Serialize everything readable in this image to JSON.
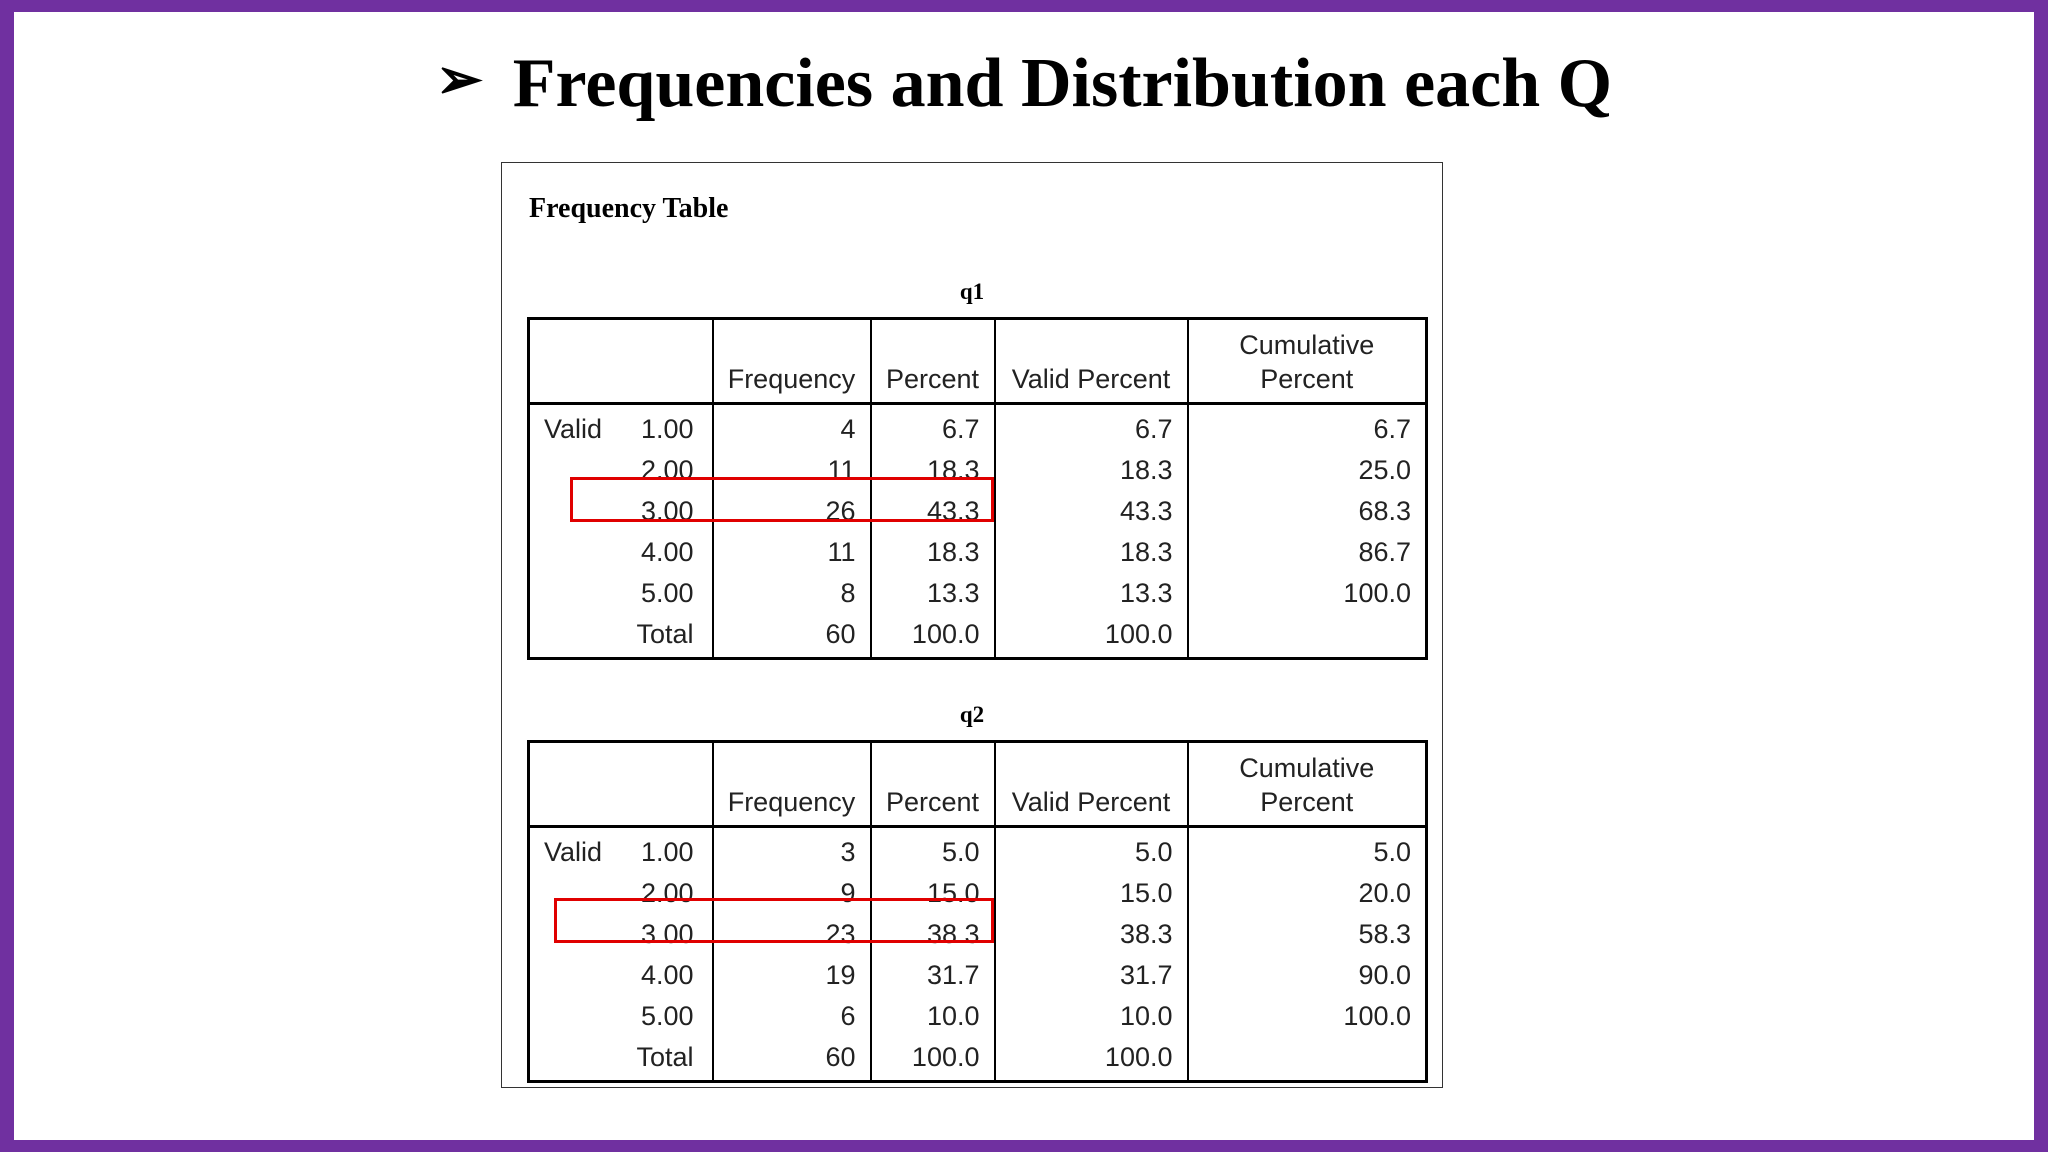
{
  "slide": {
    "title": "Frequencies and Distribution each Q",
    "arrow_glyph": "➢"
  },
  "panel": {
    "heading": "Frequency Table"
  },
  "tables": [
    {
      "caption": "q1",
      "headers": [
        "Frequency",
        "Percent",
        "Valid Percent",
        "Cumulative\nPercent"
      ],
      "group_label": "Valid",
      "rows": [
        {
          "label": "1.00",
          "frequency": "4",
          "percent": "6.7",
          "valid_percent": "6.7",
          "cumulative_percent": "6.7"
        },
        {
          "label": "2.00",
          "frequency": "11",
          "percent": "18.3",
          "valid_percent": "18.3",
          "cumulative_percent": "25.0"
        },
        {
          "label": "3.00",
          "frequency": "26",
          "percent": "43.3",
          "valid_percent": "43.3",
          "cumulative_percent": "68.3"
        },
        {
          "label": "4.00",
          "frequency": "11",
          "percent": "18.3",
          "valid_percent": "18.3",
          "cumulative_percent": "86.7"
        },
        {
          "label": "5.00",
          "frequency": "8",
          "percent": "13.3",
          "valid_percent": "13.3",
          "cumulative_percent": "100.0"
        },
        {
          "label": "Total",
          "frequency": "60",
          "percent": "100.0",
          "valid_percent": "100.0",
          "cumulative_percent": ""
        }
      ],
      "highlighted_row": "3.00"
    },
    {
      "caption": "q2",
      "headers": [
        "Frequency",
        "Percent",
        "Valid Percent",
        "Cumulative\nPercent"
      ],
      "group_label": "Valid",
      "rows": [
        {
          "label": "1.00",
          "frequency": "3",
          "percent": "5.0",
          "valid_percent": "5.0",
          "cumulative_percent": "5.0"
        },
        {
          "label": "2.00",
          "frequency": "9",
          "percent": "15.0",
          "valid_percent": "15.0",
          "cumulative_percent": "20.0"
        },
        {
          "label": "3.00",
          "frequency": "23",
          "percent": "38.3",
          "valid_percent": "38.3",
          "cumulative_percent": "58.3"
        },
        {
          "label": "4.00",
          "frequency": "19",
          "percent": "31.7",
          "valid_percent": "31.7",
          "cumulative_percent": "90.0"
        },
        {
          "label": "5.00",
          "frequency": "6",
          "percent": "10.0",
          "valid_percent": "10.0",
          "cumulative_percent": "100.0"
        },
        {
          "label": "Total",
          "frequency": "60",
          "percent": "100.0",
          "valid_percent": "100.0",
          "cumulative_percent": ""
        }
      ],
      "highlighted_row": "3.00"
    }
  ],
  "colors": {
    "frame_border": "#7030a0",
    "highlight_box": "#e00000"
  }
}
